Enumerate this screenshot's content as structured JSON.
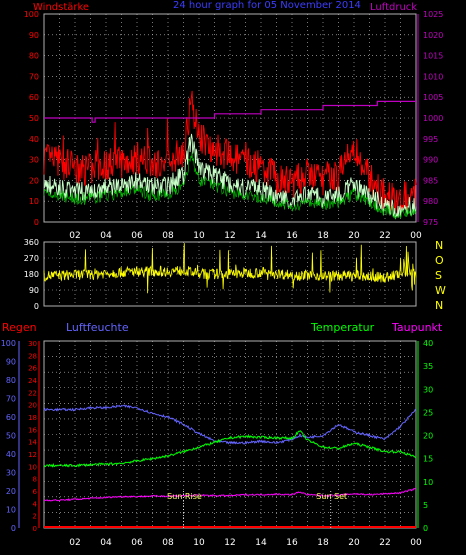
{
  "header": {
    "title": "24 hour graph for  05 November 2014",
    "wind_label": "Windstärke",
    "pressure_label": "Luftdruck"
  },
  "colors": {
    "background": "#000000",
    "grid": "#c8c8c8",
    "frame": "#b0b0b0",
    "wind_gust": "#ff0000",
    "wind_avg": "#c8ffc8",
    "wind_avg_mid": "#00c800",
    "pressure": "#c000c0",
    "direction": "#ffff00",
    "rain": "#ff0000",
    "humidity": "#6464ff",
    "temperature": "#00ff00",
    "dewpoint": "#ff00ff",
    "sun_marker": "#ffffff"
  },
  "chart_data": [
    {
      "id": "wind",
      "type": "line",
      "title": "24 hour graph for  05 November 2014",
      "x_ticks": [
        "02",
        "04",
        "06",
        "08",
        "10",
        "12",
        "14",
        "16",
        "18",
        "20",
        "22",
        "00"
      ],
      "y_left": {
        "label": "Windstärke",
        "ticks": [
          0,
          10,
          20,
          30,
          40,
          50,
          60,
          70,
          80,
          90,
          100
        ],
        "range": [
          0,
          100
        ]
      },
      "y_right": {
        "label": "Luftdruck",
        "ticks": [
          975,
          980,
          985,
          990,
          995,
          1000,
          1005,
          1010,
          1015,
          1020,
          1025
        ],
        "range": [
          975,
          1025
        ]
      },
      "grid": true,
      "x_hours": [
        0,
        1,
        2,
        3,
        4,
        5,
        6,
        7,
        8,
        9,
        9.5,
        10,
        11,
        12,
        13,
        14,
        15,
        16,
        17,
        18,
        19,
        20,
        21,
        22,
        23,
        24
      ],
      "series": [
        {
          "name": "wind_gust",
          "axis": "left",
          "values": [
            30,
            28,
            25,
            24,
            27,
            28,
            30,
            27,
            28,
            34,
            58,
            40,
            35,
            30,
            27,
            26,
            20,
            18,
            22,
            20,
            22,
            35,
            20,
            12,
            9,
            14
          ]
        },
        {
          "name": "wind_avg",
          "axis": "left",
          "values": [
            18,
            16,
            14,
            14,
            16,
            17,
            19,
            16,
            17,
            22,
            40,
            25,
            22,
            18,
            16,
            15,
            12,
            10,
            12,
            11,
            12,
            17,
            12,
            7,
            5,
            8
          ]
        },
        {
          "name": "pressure",
          "axis": "right",
          "step_x": [
            0,
            3,
            3.1,
            3.3,
            4,
            10,
            11,
            12,
            13,
            14,
            15,
            16,
            17,
            18,
            19,
            20,
            21,
            21.5,
            22,
            23,
            24
          ],
          "values": [
            1000,
            1000,
            999,
            1000,
            1000,
            1000,
            1001,
            1001,
            1001,
            1002,
            1002,
            1002,
            1002,
            1003,
            1003,
            1003,
            1003,
            1004,
            1004,
            1004,
            1004
          ]
        }
      ]
    },
    {
      "id": "direction",
      "type": "line",
      "x_ticks": [
        "02",
        "04",
        "06",
        "08",
        "10",
        "12",
        "14",
        "16",
        "18",
        "20",
        "22",
        "00"
      ],
      "y_left": {
        "ticks": [
          0,
          90,
          180,
          270,
          360
        ],
        "range": [
          0,
          360
        ]
      },
      "y_right": {
        "ticks": [
          "N",
          "W",
          "S",
          "O",
          "N"
        ]
      },
      "grid": true,
      "x_hours": [
        0,
        2,
        4,
        6,
        8,
        9,
        10,
        12,
        14,
        16,
        18,
        20,
        22,
        23,
        23.5,
        24
      ],
      "series": [
        {
          "name": "wind_direction",
          "values": [
            170,
            175,
            185,
            195,
            195,
            200,
            180,
            180,
            190,
            175,
            170,
            170,
            160,
            180,
            200,
            190
          ]
        }
      ]
    },
    {
      "id": "climate",
      "type": "line",
      "x_ticks": [
        "02",
        "04",
        "06",
        "08",
        "10",
        "12",
        "14",
        "16",
        "18",
        "20",
        "22",
        "00"
      ],
      "legend": {
        "rain": "Regen",
        "humidity": "Luftfeuchte",
        "temperature": "Temperatur",
        "dewpoint": "Taupunkt"
      },
      "y_humidity": {
        "ticks": [
          0,
          10,
          20,
          30,
          40,
          50,
          60,
          70,
          80,
          90,
          100
        ],
        "range": [
          0,
          100
        ]
      },
      "y_rain": {
        "ticks": [
          0,
          2,
          4,
          6,
          8,
          10,
          12,
          14,
          16,
          18,
          20,
          22,
          24,
          26,
          28,
          30
        ],
        "range": [
          0,
          30
        ]
      },
      "y_temp": {
        "ticks": [
          0,
          5,
          10,
          15,
          20,
          25,
          30,
          35,
          40
        ],
        "range": [
          0,
          40
        ]
      },
      "grid": true,
      "annotations": [
        {
          "label": "Sun Rise",
          "hour": 9.0
        },
        {
          "label": "Sun Set",
          "hour": 18.5
        }
      ],
      "x_hours": [
        0,
        1,
        2,
        3,
        4,
        5,
        6,
        7,
        8,
        9,
        10,
        11,
        12,
        13,
        14,
        15,
        16,
        16.5,
        17,
        18,
        19,
        20,
        21,
        22,
        23,
        24
      ],
      "series": [
        {
          "name": "humidity",
          "values": [
            64,
            64,
            64,
            65,
            65,
            66,
            65,
            62,
            60,
            56,
            51,
            47,
            46,
            46,
            47,
            46,
            48,
            50,
            49,
            50,
            56,
            52,
            50,
            48,
            55,
            64
          ]
        },
        {
          "name": "temperature",
          "values": [
            13.5,
            13.5,
            13.5,
            13.7,
            13.8,
            14,
            14.5,
            15,
            15.6,
            16.5,
            17.5,
            18.5,
            19.5,
            19.8,
            19.6,
            19.5,
            19.4,
            21,
            19,
            17.5,
            17.2,
            18.3,
            17.5,
            16.5,
            16.5,
            15.3
          ]
        },
        {
          "name": "dewpoint",
          "values": [
            6,
            6,
            6.2,
            6.4,
            6.6,
            6.8,
            6.8,
            6.9,
            6.9,
            7,
            7.1,
            7,
            7,
            7.2,
            7.2,
            7.3,
            7.2,
            7.8,
            7.2,
            7,
            7.1,
            7.4,
            7.2,
            7.4,
            7.6,
            8.5
          ]
        },
        {
          "name": "rain",
          "values": [
            0,
            0,
            0,
            0,
            0,
            0,
            0,
            0,
            0,
            0,
            0,
            0,
            0,
            0,
            0,
            0,
            0,
            0,
            0,
            0,
            0,
            0,
            0,
            0,
            0,
            0
          ]
        }
      ]
    }
  ]
}
